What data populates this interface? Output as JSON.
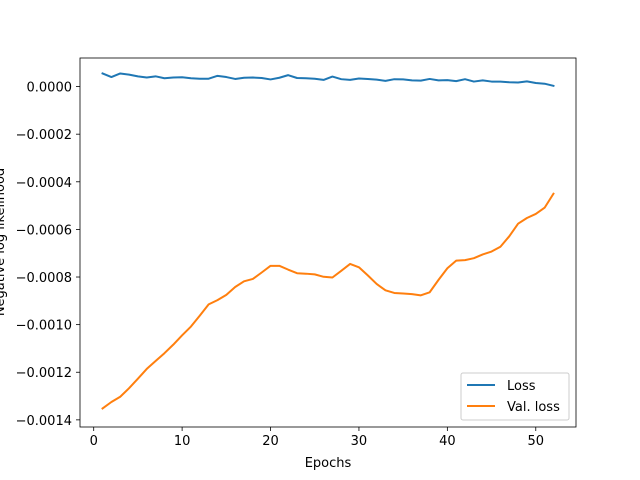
{
  "chart_data": {
    "type": "line",
    "title": "",
    "xlabel": "Epochs",
    "ylabel": "Negative log likelihood",
    "xlim": [
      -1.55,
      54.55
    ],
    "ylim": [
      -0.00143,
      0.00012
    ],
    "xticks": [
      0,
      10,
      20,
      30,
      40,
      50
    ],
    "yticks": [
      0.0,
      -0.0002,
      -0.0004,
      -0.0006,
      -0.0008,
      -0.001,
      -0.0012,
      -0.0014
    ],
    "ytick_labels": [
      "0.0000",
      "−0.0002",
      "−0.0004",
      "−0.0006",
      "−0.0008",
      "−0.0010",
      "−0.0012",
      "−0.0014"
    ],
    "grid": false,
    "legend_position": "lower-right",
    "series": [
      {
        "name": "Loss",
        "color": "#1f77b4",
        "x": [
          1,
          2,
          3,
          4,
          5,
          6,
          7,
          8,
          9,
          10,
          11,
          12,
          13,
          14,
          15,
          16,
          17,
          18,
          19,
          20,
          21,
          22,
          23,
          24,
          25,
          26,
          27,
          28,
          29,
          30,
          31,
          32,
          33,
          34,
          35,
          36,
          37,
          38,
          39,
          40,
          41,
          42,
          43,
          44,
          45,
          46,
          47,
          48,
          49,
          50,
          51,
          52
        ],
        "y": [
          5.5e-05,
          4e-05,
          5.5e-05,
          5e-05,
          4.3e-05,
          3.8e-05,
          4.3e-05,
          3.5e-05,
          3.8e-05,
          3.9e-05,
          3.5e-05,
          3.3e-05,
          3.3e-05,
          4.5e-05,
          4e-05,
          3.2e-05,
          3.7e-05,
          3.8e-05,
          3.6e-05,
          3e-05,
          3.7e-05,
          4.8e-05,
          3.6e-05,
          3.5e-05,
          3.3e-05,
          2.8e-05,
          4.2e-05,
          3.1e-05,
          2.8e-05,
          3.4e-05,
          3.2e-05,
          2.9e-05,
          2.4e-05,
          3.1e-05,
          3e-05,
          2.6e-05,
          2.5e-05,
          3.2e-05,
          2.6e-05,
          2.7e-05,
          2.3e-05,
          3.1e-05,
          2.1e-05,
          2.6e-05,
          2.1e-05,
          2.1e-05,
          1.8e-05,
          1.7e-05,
          2.2e-05,
          1.5e-05,
          1.2e-05,
          3e-06
        ]
      },
      {
        "name": "Val. loss",
        "color": "#ff7f0e",
        "x": [
          1,
          2,
          3,
          4,
          5,
          6,
          7,
          8,
          9,
          10,
          11,
          12,
          13,
          14,
          15,
          16,
          17,
          18,
          19,
          20,
          21,
          22,
          23,
          24,
          25,
          26,
          27,
          28,
          29,
          30,
          31,
          32,
          33,
          34,
          35,
          36,
          37,
          38,
          39,
          40,
          41,
          42,
          43,
          44,
          45,
          46,
          47,
          48,
          49,
          50,
          51,
          52
        ],
        "y": [
          -0.001352,
          -0.001325,
          -0.001303,
          -0.001267,
          -0.001227,
          -0.001186,
          -0.001153,
          -0.00112,
          -0.001084,
          -0.001045,
          -0.001008,
          -0.000962,
          -0.000915,
          -0.000897,
          -0.000875,
          -0.000842,
          -0.000818,
          -0.000808,
          -0.000781,
          -0.000753,
          -0.000753,
          -0.000769,
          -0.000784,
          -0.000786,
          -0.000789,
          -0.000799,
          -0.000802,
          -0.000774,
          -0.000745,
          -0.000759,
          -0.000793,
          -0.000829,
          -0.000856,
          -0.000867,
          -0.000869,
          -0.000872,
          -0.000877,
          -0.000864,
          -0.000812,
          -0.000763,
          -0.000731,
          -0.000729,
          -0.000721,
          -0.000705,
          -0.000693,
          -0.000673,
          -0.000629,
          -0.000576,
          -0.000552,
          -0.000535,
          -0.000509,
          -0.00045
        ]
      }
    ]
  }
}
